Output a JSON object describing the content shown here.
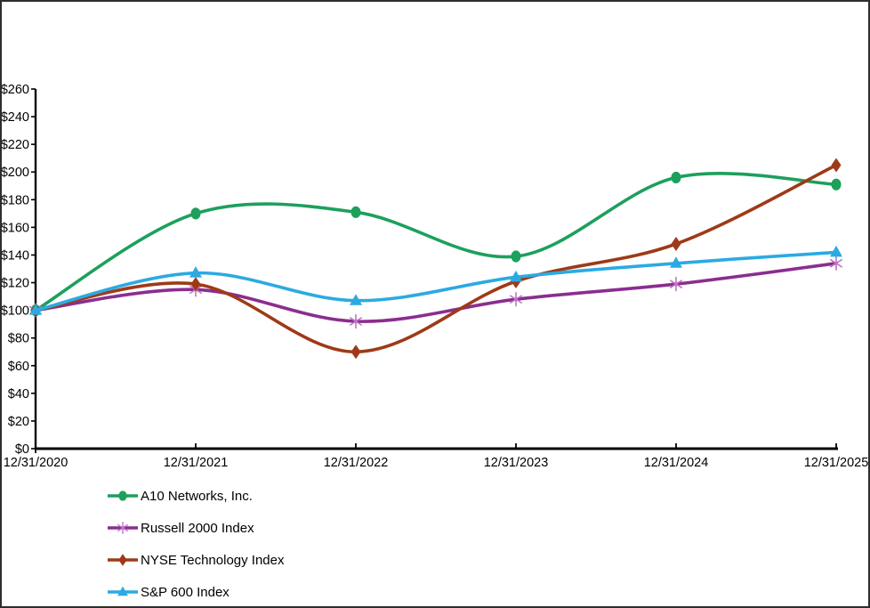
{
  "chart_data": {
    "type": "line",
    "title": "",
    "xlabel": "",
    "ylabel": "",
    "categories": [
      "12/31/2020",
      "12/31/2021",
      "12/31/2022",
      "12/31/2023",
      "12/31/2024",
      "12/31/2025"
    ],
    "series": [
      {
        "name": "A10 Networks, Inc.",
        "color": "#1CA05C",
        "marker": "circle",
        "values": [
          100,
          170,
          171,
          139,
          196,
          191
        ]
      },
      {
        "name": "Russell 2000 Index",
        "color": "#8B2D90",
        "marker": "asterisk",
        "marker_color": "#BE76C3",
        "values": [
          100,
          115,
          92,
          108,
          119,
          134
        ]
      },
      {
        "name": "NYSE Technology Index",
        "color": "#9E3A17",
        "marker": "diamond",
        "values": [
          100,
          119,
          70,
          121,
          148,
          205
        ]
      },
      {
        "name": "S&P 600 Index",
        "color": "#2BAAE2",
        "marker": "triangle",
        "values": [
          100,
          127,
          107,
          124,
          134,
          142
        ]
      }
    ],
    "ylim": [
      0,
      260
    ],
    "y_tick_step": 20,
    "y_tick_prefix": "$",
    "grid": false,
    "smooth": true,
    "legend_position": "bottom-left",
    "axis_color": "#000000"
  },
  "frame": {
    "background": "#ffffff",
    "border_color": "#2e2e2e"
  }
}
